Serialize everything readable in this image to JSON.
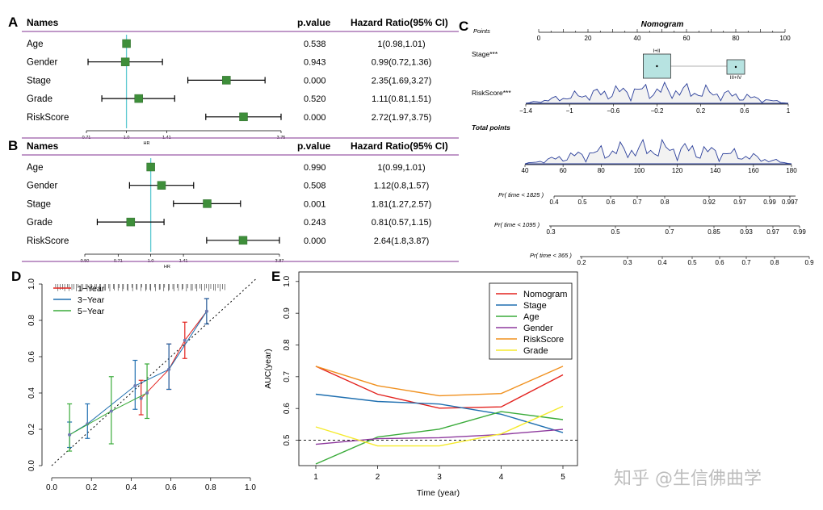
{
  "panel_letters": [
    "A",
    "B",
    "C",
    "D",
    "E"
  ],
  "forest_headers": {
    "names": "Names",
    "p": "p.value",
    "hr": "Hazard Ratio(95% CI)",
    "axis_label": "HR"
  },
  "watermark": "知乎 @生信佛曲学",
  "chart_data": [
    {
      "type": "forest",
      "panel": "A",
      "rows": [
        {
          "name": "Age",
          "p": "0.538",
          "hr_text": "1(0.98,1.01)",
          "hr": 1.0,
          "lo": 0.98,
          "hi": 1.01
        },
        {
          "name": "Gender",
          "p": "0.943",
          "hr_text": "0.99(0.72,1.36)",
          "hr": 0.99,
          "lo": 0.72,
          "hi": 1.36
        },
        {
          "name": "Stage",
          "p": "0.000",
          "hr_text": "2.35(1.69,3.27)",
          "hr": 2.35,
          "lo": 1.69,
          "hi": 3.27
        },
        {
          "name": "Grade",
          "p": "0.520",
          "hr_text": "1.11(0.81,1.51)",
          "hr": 1.11,
          "lo": 0.81,
          "hi": 1.51
        },
        {
          "name": "RiskScore",
          "p": "0.000",
          "hr_text": "2.72(1.97,3.75)",
          "hr": 2.72,
          "lo": 1.97,
          "hi": 3.75
        }
      ],
      "ticks": [
        "0.71",
        "1.0",
        "1.41",
        "3.75"
      ],
      "tick_values": [
        0.71,
        1.0,
        1.41,
        3.75
      ],
      "log_scale": true,
      "xlim": [
        0.71,
        3.75
      ]
    },
    {
      "type": "forest",
      "panel": "B",
      "rows": [
        {
          "name": "Age",
          "p": "0.990",
          "hr_text": "1(0.99,1.01)",
          "hr": 1.0,
          "lo": 0.99,
          "hi": 1.01
        },
        {
          "name": "Gender",
          "p": "0.508",
          "hr_text": "1.12(0.8,1.57)",
          "hr": 1.12,
          "lo": 0.8,
          "hi": 1.57
        },
        {
          "name": "Stage",
          "p": "0.001",
          "hr_text": "1.81(1.27,2.57)",
          "hr": 1.81,
          "lo": 1.27,
          "hi": 2.57
        },
        {
          "name": "Grade",
          "p": "0.243",
          "hr_text": "0.81(0.57,1.15)",
          "hr": 0.81,
          "lo": 0.57,
          "hi": 1.15
        },
        {
          "name": "RiskScore",
          "p": "0.000",
          "hr_text": "2.64(1.8,3.87)",
          "hr": 2.64,
          "lo": 1.8,
          "hi": 3.87
        }
      ],
      "ticks": [
        "0.50",
        "0.71",
        "1.0",
        "1.41",
        "3.87"
      ],
      "tick_values": [
        0.5,
        0.71,
        1.0,
        1.41,
        3.87
      ],
      "log_scale": true,
      "xlim": [
        0.5,
        3.87
      ]
    },
    {
      "type": "nomogram",
      "panel": "C",
      "title": "Nomogram",
      "scales": [
        {
          "label": "Points",
          "ticks": [
            "0",
            "20",
            "40",
            "60",
            "80",
            "100"
          ],
          "values": [
            0,
            20,
            40,
            60,
            80,
            100
          ]
        },
        {
          "label": "Stage***",
          "boxes": [
            "I+II",
            "III+IV"
          ],
          "box_points": [
            48,
            80
          ]
        },
        {
          "label": "RiskScore***",
          "ticks": [
            "−1.4",
            "−1",
            "−0.6",
            "−0.2",
            "0.2",
            "0.6",
            "1"
          ],
          "values": [
            -1.4,
            -1,
            -0.6,
            -0.2,
            0.2,
            0.6,
            1
          ]
        },
        {
          "label": "Total points",
          "ticks": [
            "40",
            "60",
            "80",
            "100",
            "120",
            "140",
            "160",
            "180"
          ],
          "values": [
            40,
            60,
            80,
            100,
            120,
            140,
            160,
            180
          ]
        },
        {
          "label": "Pr( time < 1825 )",
          "ticks": [
            "0.4",
            "0.5",
            "0.6",
            "0.7",
            "0.8",
            "0.92",
            "0.97",
            "0.99",
            "0.997"
          ]
        },
        {
          "label": "Pr( time < 1095 )",
          "ticks": [
            "0.3",
            "0.5",
            "0.7",
            "0.85",
            "0.93",
            "0.97",
            "0.99"
          ]
        },
        {
          "label": "Pr( time < 365 )",
          "ticks": [
            "0.2",
            "0.3",
            "0.4",
            "0.5",
            "0.6",
            "0.7",
            "0.8",
            "0.9"
          ]
        }
      ]
    },
    {
      "type": "line",
      "panel": "D",
      "xlim": [
        0,
        1
      ],
      "ylim": [
        0,
        1
      ],
      "x_ticks": [
        "0.0",
        "0.2",
        "0.4",
        "0.6",
        "0.8",
        "1.0"
      ],
      "x_tick_values": [
        0,
        0.2,
        0.4,
        0.6,
        0.8,
        1.0
      ],
      "y_ticks": [
        "0.0",
        "0.2",
        "0.4",
        "0.6",
        "0.8",
        "1.0"
      ],
      "y_tick_values": [
        0,
        0.2,
        0.4,
        0.6,
        0.8,
        1.0
      ],
      "legend_position": "top-left",
      "series": [
        {
          "name": "1−Year",
          "color": "#e3231f",
          "x": [
            0.45,
            0.59,
            0.67,
            0.78
          ],
          "y": [
            0.37,
            0.53,
            0.69,
            0.85
          ],
          "lo": [
            0.28,
            0.42,
            0.59,
            0.78
          ],
          "hi": [
            0.47,
            0.67,
            0.79,
            0.92
          ]
        },
        {
          "name": "3−Year",
          "color": "#1f6fb0",
          "x": [
            0.09,
            0.18,
            0.42,
            0.59,
            0.78
          ],
          "y": [
            0.17,
            0.23,
            0.44,
            0.53,
            0.85
          ],
          "lo": [
            0.1,
            0.15,
            0.31,
            0.42,
            0.78
          ],
          "hi": [
            0.24,
            0.34,
            0.58,
            0.67,
            0.92
          ]
        },
        {
          "name": "5−Year",
          "color": "#3aab3a",
          "x": [
            0.09,
            0.3,
            0.48
          ],
          "y": [
            0.17,
            0.3,
            0.4
          ],
          "lo": [
            0.08,
            0.12,
            0.26
          ],
          "hi": [
            0.34,
            0.49,
            0.56
          ]
        }
      ]
    },
    {
      "type": "line",
      "panel": "E",
      "xlabel": "Time (year)",
      "ylabel": "AUC(year)",
      "categories": [
        "1",
        "2",
        "3",
        "4",
        "5"
      ],
      "y_ticks": [
        "0.5",
        "0.6",
        "0.7",
        "0.8",
        "0.9",
        "1.0"
      ],
      "y_tick_values": [
        0.5,
        0.6,
        0.7,
        0.8,
        0.9,
        1.0
      ],
      "ylim": [
        0.42,
        1.03
      ],
      "reference_line": 0.5,
      "legend_position": "top-right",
      "series": [
        {
          "name": "Nomogram",
          "color": "#e3231f",
          "values": [
            0.733,
            0.645,
            0.601,
            0.605,
            0.706
          ]
        },
        {
          "name": "Stage",
          "color": "#1f6fb0",
          "values": [
            0.645,
            0.622,
            0.614,
            0.582,
            0.524
          ]
        },
        {
          "name": "Age",
          "color": "#3aab3a",
          "values": [
            0.425,
            0.51,
            0.535,
            0.59,
            0.565
          ]
        },
        {
          "name": "Gender",
          "color": "#8e3a9e",
          "values": [
            0.487,
            0.505,
            0.508,
            0.518,
            0.534
          ]
        },
        {
          "name": "RiskScore",
          "color": "#f0901e",
          "values": [
            0.733,
            0.672,
            0.64,
            0.647,
            0.733
          ]
        },
        {
          "name": "Grade",
          "color": "#f5ea2c",
          "values": [
            0.542,
            0.482,
            0.482,
            0.52,
            0.607
          ]
        }
      ]
    }
  ]
}
